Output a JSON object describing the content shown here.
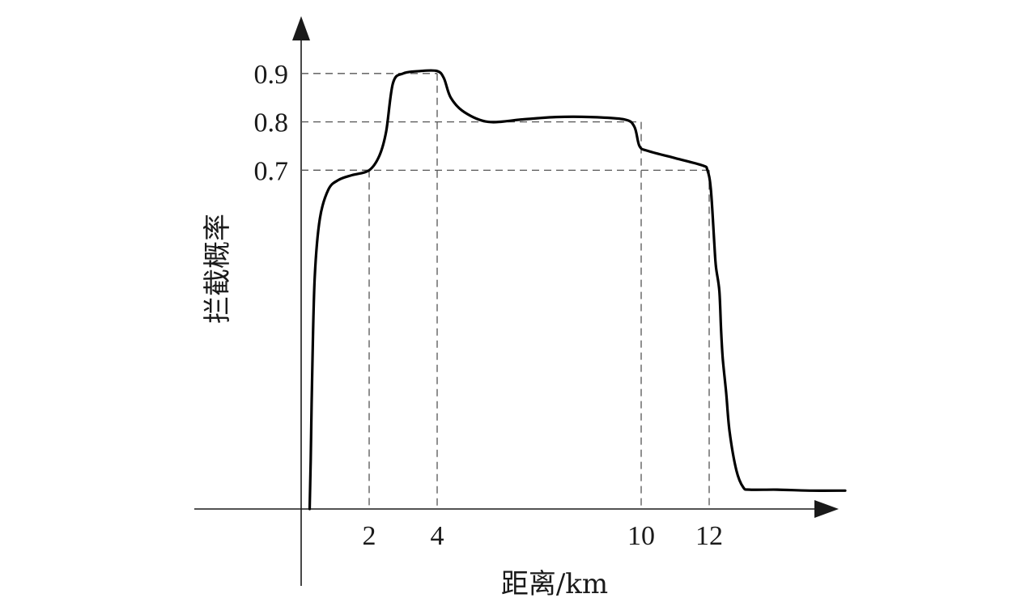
{
  "chart_data": {
    "type": "line",
    "title": "",
    "xlabel": "距离/km",
    "ylabel": "拦截概率",
    "x_ticks": [
      "2",
      "4",
      "10",
      "12"
    ],
    "y_ticks": [
      "0.7",
      "0.8",
      "0.9"
    ],
    "xlim": [
      0,
      16.3
    ],
    "ylim": [
      0,
      1.0
    ],
    "grid": false,
    "reference_lines": [
      {
        "x": 2,
        "y": 0.7
      },
      {
        "x": 4,
        "y": 0.9
      },
      {
        "x": 10,
        "y": 0.8
      },
      {
        "x": 12,
        "y": 0.7
      }
    ],
    "series": [
      {
        "x": [
          0.25,
          0.28,
          0.33,
          0.4,
          0.55,
          0.8,
          1.1,
          1.5,
          2.0,
          2.3,
          2.5,
          2.7,
          3.0,
          3.5,
          4.0,
          4.2,
          4.4,
          4.8,
          5.5,
          6.5,
          7.5,
          8.5,
          9.5,
          9.8,
          9.95,
          10.2,
          11.0,
          11.8,
          11.95,
          12.05,
          12.15,
          12.2,
          12.3,
          12.35,
          12.4,
          12.5,
          12.6,
          12.8,
          13.0,
          13.2,
          14.0,
          15.0,
          16.0
        ],
        "y": [
          0.0,
          0.1,
          0.3,
          0.48,
          0.6,
          0.66,
          0.68,
          0.69,
          0.7,
          0.73,
          0.78,
          0.88,
          0.9,
          0.905,
          0.905,
          0.89,
          0.85,
          0.82,
          0.8,
          0.805,
          0.81,
          0.81,
          0.805,
          0.79,
          0.75,
          0.74,
          0.725,
          0.71,
          0.7,
          0.66,
          0.55,
          0.5,
          0.45,
          0.37,
          0.31,
          0.24,
          0.16,
          0.08,
          0.045,
          0.04,
          0.04,
          0.038,
          0.038
        ]
      }
    ]
  }
}
